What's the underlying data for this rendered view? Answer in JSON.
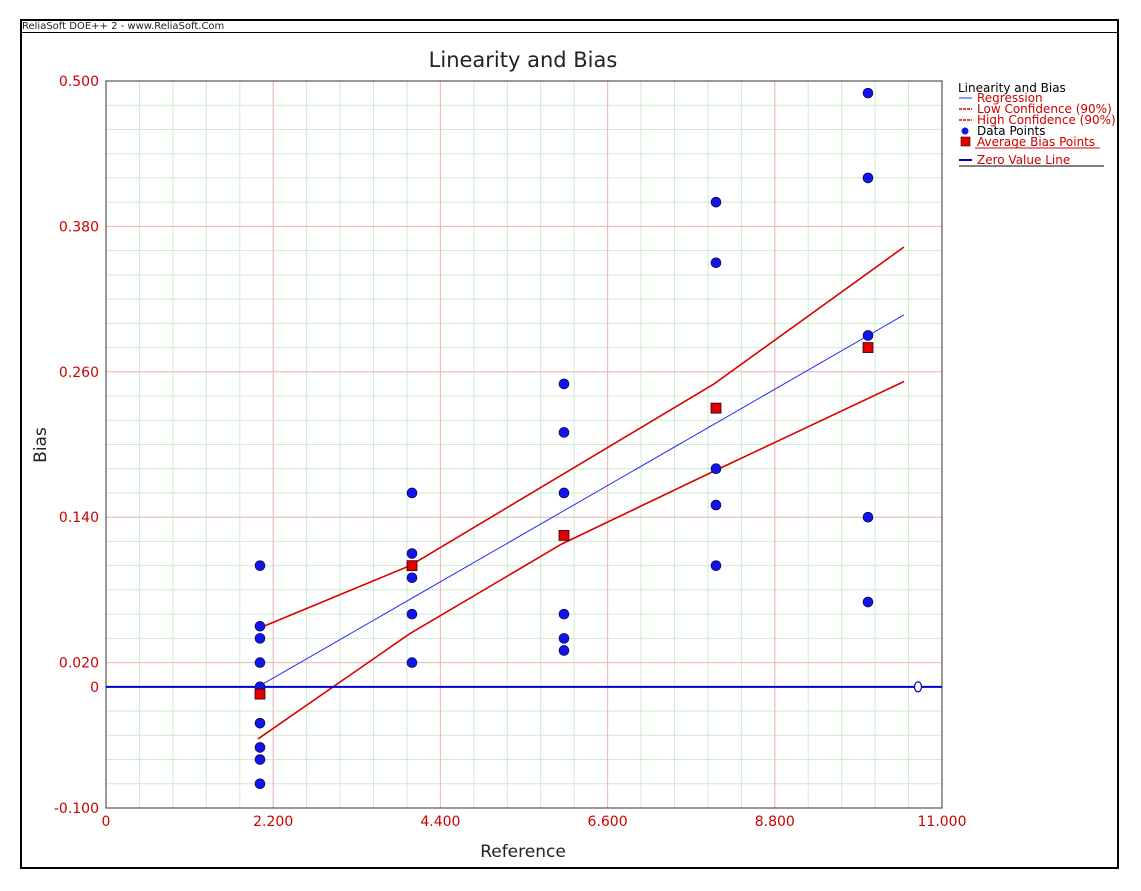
{
  "window": {
    "title": "ReliaSoft DOE++ 2 - www.ReliaSoft.Com"
  },
  "colors": {
    "axis_text": "#cc0000",
    "point": "#1414e6",
    "avg": "#e00000",
    "confidence": "#dd0000",
    "regression": "#2a2aff",
    "zero_line": "#0000cc",
    "grid_major": "#f0b8b8",
    "grid_minor": "#cdeccd"
  },
  "chart_data": {
    "type": "scatter",
    "title": "Linearity and Bias",
    "xlabel": "Reference",
    "ylabel": "Bias",
    "xlim": [
      0,
      11
    ],
    "ylim": [
      -0.1,
      0.5
    ],
    "x_ticks": [
      0,
      2.2,
      4.4,
      6.6,
      8.8,
      11
    ],
    "x_tick_labels": [
      "0",
      "2.200",
      "4.400",
      "6.600",
      "8.800",
      "11.000"
    ],
    "y_ticks": [
      -0.1,
      0,
      0.02,
      0.14,
      0.26,
      0.38,
      0.5
    ],
    "y_tick_labels": [
      "-0.100",
      "0",
      "0.020",
      "0.140",
      "0.260",
      "0.380",
      "0.500"
    ],
    "grid": true,
    "legend_position": "right",
    "legend": {
      "title": "Linearity and Bias",
      "items": [
        "Regression",
        "Low Confidence (90%)",
        "High Confidence (90%)",
        "Data Points",
        "Average Bias Points",
        "Zero Value Line"
      ]
    },
    "data_points": [
      [
        2,
        0.1
      ],
      [
        2,
        0.05
      ],
      [
        2,
        0.04
      ],
      [
        2,
        0.02
      ],
      [
        2,
        0.0
      ],
      [
        2,
        -0.03
      ],
      [
        2,
        -0.05
      ],
      [
        2,
        -0.06
      ],
      [
        2,
        -0.08
      ],
      [
        4,
        0.16
      ],
      [
        4,
        0.11
      ],
      [
        4,
        0.09
      ],
      [
        4,
        0.06
      ],
      [
        4,
        0.02
      ],
      [
        6,
        0.25
      ],
      [
        6,
        0.21
      ],
      [
        6,
        0.16
      ],
      [
        6,
        0.06
      ],
      [
        6,
        0.04
      ],
      [
        6,
        0.03
      ],
      [
        8,
        0.4
      ],
      [
        8,
        0.35
      ],
      [
        8,
        0.18
      ],
      [
        8,
        0.15
      ],
      [
        8,
        0.1
      ],
      [
        10,
        0.49
      ],
      [
        10,
        0.42
      ],
      [
        10,
        0.29
      ],
      [
        10,
        0.14
      ],
      [
        10,
        0.07
      ]
    ],
    "average_bias_points": [
      [
        2,
        -0.006
      ],
      [
        4,
        0.1
      ],
      [
        6,
        0.125
      ],
      [
        8,
        0.23
      ],
      [
        10,
        0.28
      ]
    ],
    "regression_line": [
      [
        2,
        0.0
      ],
      [
        10.5,
        0.307
      ]
    ],
    "low_confidence": [
      [
        2,
        -0.043
      ],
      [
        4,
        0.044
      ],
      [
        6,
        0.118
      ],
      [
        8,
        0.178
      ],
      [
        10.5,
        0.252
      ]
    ],
    "high_confidence": [
      [
        2,
        0.048
      ],
      [
        4,
        0.1
      ],
      [
        6,
        0.175
      ],
      [
        8,
        0.25
      ],
      [
        10.5,
        0.363
      ]
    ],
    "zero_line": 0
  }
}
